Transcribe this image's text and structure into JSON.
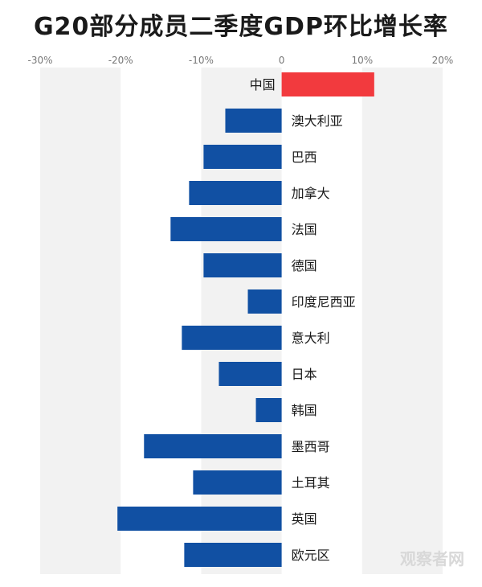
{
  "chart_data": {
    "type": "bar",
    "orientation": "horizontal",
    "title": "G20部分成员二季度GDP环比增长率",
    "categories": [
      "中国",
      "澳大利亚",
      "巴西",
      "加拿大",
      "法国",
      "德国",
      "印度尼西亚",
      "意大利",
      "日本",
      "韩国",
      "墨西哥",
      "土耳其",
      "英国",
      "欧元区"
    ],
    "values": [
      11.5,
      -7.0,
      -9.7,
      -11.5,
      -13.8,
      -9.7,
      -4.2,
      -12.4,
      -7.8,
      -3.2,
      -17.1,
      -11.0,
      -20.4,
      -12.1
    ],
    "xlim": [
      -30,
      20
    ],
    "xticks": [
      -30,
      -20,
      -10,
      0,
      10,
      20
    ],
    "xtick_labels": [
      "-30%",
      "-20%",
      "-10%",
      "0",
      "10%",
      "20%"
    ],
    "xlabel": "",
    "ylabel": "",
    "grid": "alternating vertical bands",
    "colors": {
      "positive": "#F23A3E",
      "negative": "#1150A3",
      "band": "#F2F2F2"
    }
  },
  "watermark": "观察者网"
}
